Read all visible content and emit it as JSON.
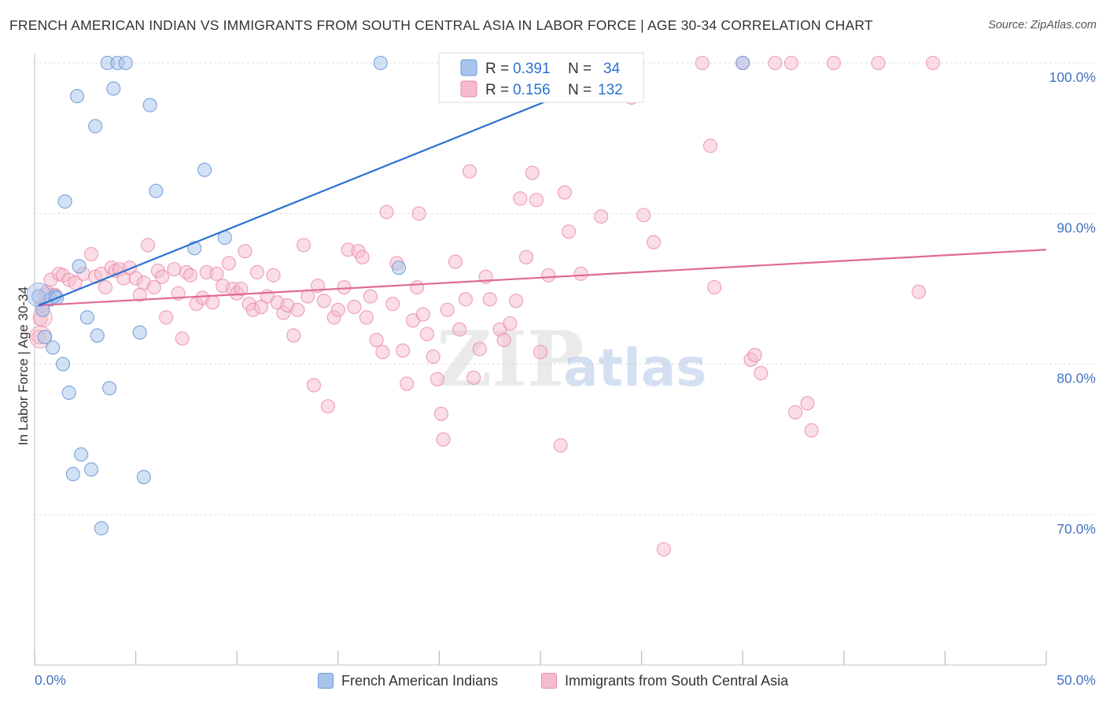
{
  "title": "FRENCH AMERICAN INDIAN VS IMMIGRANTS FROM SOUTH CENTRAL ASIA IN LABOR FORCE | AGE 30-34 CORRELATION CHART",
  "source": "Source: ZipAtlas.com",
  "watermark": {
    "zip": "ZIP",
    "atlas": "atlas"
  },
  "colors": {
    "blue_fill": "#a8c4ec",
    "blue_stroke": "#6d9ad8",
    "blue_line": "#2d72d2",
    "pink_fill": "#f6bccd",
    "pink_stroke": "#e88aa6",
    "pink_line": "#e06a95",
    "tick_label": "#4472c4",
    "grid": "#dddddd"
  },
  "legend_box": {
    "rows": [
      {
        "r_label": "R =",
        "r_value": "0.391",
        "n_label": "N =",
        "n_value": "34"
      },
      {
        "r_label": "R =",
        "r_value": "0.156",
        "n_label": "N =",
        "n_value": "132"
      }
    ]
  },
  "bottom_legend": {
    "series1": "French American Indians",
    "series2": "Immigrants from South Central Asia"
  },
  "chart_data": {
    "type": "scatter",
    "title": "FRENCH AMERICAN INDIAN VS IMMIGRANTS FROM SOUTH CENTRAL ASIA IN LABOR FORCE | AGE 30-34 CORRELATION CHART",
    "xlabel": "",
    "ylabel": "In Labor Force | Age 30-34",
    "xlim": [
      0,
      50
    ],
    "ylim": [
      60,
      100.9
    ],
    "x_tick_labels": [
      "0.0%",
      "50.0%"
    ],
    "x_minor_ticks": [
      0,
      5,
      10,
      15,
      20,
      25,
      30,
      35,
      40,
      45,
      50
    ],
    "y_ticks": [
      70,
      80,
      90,
      100
    ],
    "y_tick_labels": [
      "70.0%",
      "80.0%",
      "90.0%",
      "100.0%"
    ],
    "grid": true,
    "legend_position": "top-center",
    "series": [
      {
        "name": "French American Indians",
        "R": 0.391,
        "N": 34,
        "trend": {
          "x": [
            0.2,
            30.0
          ],
          "y": [
            83.9,
            100.0
          ]
        },
        "points": [
          [
            0.2,
            84.5
          ],
          [
            0.4,
            83.6
          ],
          [
            0.5,
            81.8
          ],
          [
            0.8,
            84.3
          ],
          [
            0.9,
            81.1
          ],
          [
            1.0,
            84.5
          ],
          [
            1.1,
            84.4
          ],
          [
            1.4,
            80.0
          ],
          [
            1.5,
            90.8
          ],
          [
            1.7,
            78.1
          ],
          [
            1.9,
            72.7
          ],
          [
            2.1,
            97.8
          ],
          [
            2.2,
            86.5
          ],
          [
            2.3,
            74.0
          ],
          [
            2.6,
            83.1
          ],
          [
            2.8,
            73.0
          ],
          [
            3.0,
            95.8
          ],
          [
            3.1,
            81.9
          ],
          [
            3.6,
            100.0
          ],
          [
            3.7,
            78.4
          ],
          [
            3.9,
            98.3
          ],
          [
            4.1,
            100.0
          ],
          [
            4.5,
            100.0
          ],
          [
            5.2,
            82.1
          ],
          [
            5.4,
            72.5
          ],
          [
            5.7,
            97.2
          ],
          [
            6.0,
            91.5
          ],
          [
            7.9,
            87.7
          ],
          [
            8.4,
            92.9
          ],
          [
            9.4,
            88.4
          ],
          [
            17.1,
            100.0
          ],
          [
            18.0,
            86.4
          ],
          [
            35.0,
            100.0
          ],
          [
            3.3,
            69.1
          ]
        ]
      },
      {
        "name": "Immigrants from South Central Asia",
        "R": 0.156,
        "N": 132,
        "trend": {
          "x": [
            0.2,
            50.0
          ],
          "y": [
            83.9,
            87.6
          ]
        },
        "points": [
          [
            0.2,
            81.8
          ],
          [
            0.3,
            83.0
          ],
          [
            0.4,
            83.9
          ],
          [
            0.6,
            84.8
          ],
          [
            0.8,
            85.6
          ],
          [
            1.0,
            84.6
          ],
          [
            1.2,
            86.0
          ],
          [
            1.4,
            85.9
          ],
          [
            1.7,
            85.6
          ],
          [
            2.0,
            85.4
          ],
          [
            2.4,
            86.0
          ],
          [
            2.8,
            87.3
          ],
          [
            3.0,
            85.8
          ],
          [
            3.3,
            86.0
          ],
          [
            3.5,
            85.1
          ],
          [
            3.8,
            86.4
          ],
          [
            4.0,
            86.2
          ],
          [
            4.2,
            86.3
          ],
          [
            4.4,
            85.7
          ],
          [
            4.7,
            86.4
          ],
          [
            5.0,
            85.7
          ],
          [
            5.2,
            84.6
          ],
          [
            5.4,
            85.4
          ],
          [
            5.6,
            87.9
          ],
          [
            5.9,
            85.1
          ],
          [
            6.1,
            86.2
          ],
          [
            6.3,
            85.8
          ],
          [
            6.5,
            83.1
          ],
          [
            6.9,
            86.3
          ],
          [
            7.1,
            84.7
          ],
          [
            7.3,
            81.7
          ],
          [
            7.5,
            86.1
          ],
          [
            7.7,
            85.9
          ],
          [
            8.0,
            84.0
          ],
          [
            8.3,
            84.4
          ],
          [
            8.5,
            86.1
          ],
          [
            8.8,
            84.1
          ],
          [
            9.0,
            86.0
          ],
          [
            9.3,
            85.2
          ],
          [
            9.6,
            86.7
          ],
          [
            9.8,
            85.0
          ],
          [
            10.0,
            84.7
          ],
          [
            10.2,
            85.0
          ],
          [
            10.4,
            87.5
          ],
          [
            10.6,
            84.0
          ],
          [
            10.8,
            83.6
          ],
          [
            11.0,
            86.1
          ],
          [
            11.2,
            83.8
          ],
          [
            11.5,
            84.5
          ],
          [
            11.8,
            85.9
          ],
          [
            12.0,
            84.1
          ],
          [
            12.3,
            83.4
          ],
          [
            12.5,
            83.9
          ],
          [
            12.8,
            81.9
          ],
          [
            13.0,
            83.6
          ],
          [
            13.3,
            87.9
          ],
          [
            13.5,
            84.5
          ],
          [
            13.8,
            78.6
          ],
          [
            14.0,
            85.2
          ],
          [
            14.3,
            84.2
          ],
          [
            14.5,
            77.2
          ],
          [
            14.8,
            83.1
          ],
          [
            15.0,
            83.6
          ],
          [
            15.3,
            85.1
          ],
          [
            15.5,
            87.6
          ],
          [
            15.8,
            83.8
          ],
          [
            16.0,
            87.5
          ],
          [
            16.2,
            87.1
          ],
          [
            16.4,
            83.1
          ],
          [
            16.6,
            84.5
          ],
          [
            16.9,
            81.6
          ],
          [
            17.2,
            80.8
          ],
          [
            17.4,
            90.1
          ],
          [
            17.7,
            84.0
          ],
          [
            17.9,
            86.7
          ],
          [
            18.2,
            80.9
          ],
          [
            18.4,
            78.7
          ],
          [
            18.7,
            82.9
          ],
          [
            18.9,
            85.1
          ],
          [
            19.2,
            83.3
          ],
          [
            19.4,
            82.0
          ],
          [
            19.7,
            80.5
          ],
          [
            19.9,
            79.0
          ],
          [
            20.1,
            76.7
          ],
          [
            20.2,
            75.0
          ],
          [
            20.4,
            83.6
          ],
          [
            20.8,
            86.8
          ],
          [
            21.0,
            82.3
          ],
          [
            21.3,
            84.3
          ],
          [
            21.5,
            92.8
          ],
          [
            21.7,
            79.1
          ],
          [
            22.0,
            81.0
          ],
          [
            22.3,
            85.8
          ],
          [
            22.5,
            84.3
          ],
          [
            23.0,
            82.3
          ],
          [
            23.2,
            81.6
          ],
          [
            23.5,
            82.7
          ],
          [
            23.8,
            84.2
          ],
          [
            24.0,
            91.0
          ],
          [
            24.3,
            87.1
          ],
          [
            24.6,
            92.7
          ],
          [
            24.8,
            90.9
          ],
          [
            25.0,
            80.8
          ],
          [
            25.4,
            85.9
          ],
          [
            26.0,
            74.6
          ],
          [
            26.2,
            91.4
          ],
          [
            26.4,
            88.8
          ],
          [
            28.0,
            89.8
          ],
          [
            29.5,
            97.7
          ],
          [
            30.1,
            89.9
          ],
          [
            30.6,
            88.1
          ],
          [
            31.1,
            67.7
          ],
          [
            33.0,
            100.0
          ],
          [
            33.4,
            94.5
          ],
          [
            33.6,
            85.1
          ],
          [
            35.0,
            100.0
          ],
          [
            35.4,
            80.3
          ],
          [
            35.6,
            80.6
          ],
          [
            35.9,
            79.4
          ],
          [
            36.6,
            100.0
          ],
          [
            37.4,
            100.0
          ],
          [
            37.6,
            76.8
          ],
          [
            38.2,
            77.4
          ],
          [
            38.4,
            75.6
          ],
          [
            39.5,
            100.0
          ],
          [
            41.7,
            100.0
          ],
          [
            43.7,
            84.8
          ],
          [
            44.4,
            100.0
          ],
          [
            19.0,
            90.0
          ],
          [
            27.0,
            86.0
          ]
        ]
      }
    ]
  }
}
